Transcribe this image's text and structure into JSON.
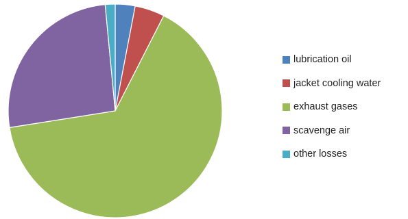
{
  "chart_data": {
    "type": "pie",
    "title": "",
    "start_angle_deg": 0,
    "direction": "clockwise",
    "legend_position": "right",
    "slices": [
      {
        "label": "lubrication oil",
        "value": 3.0,
        "color": "#4F81BD"
      },
      {
        "label": "jacket cooling water",
        "value": 4.5,
        "color": "#C0504D"
      },
      {
        "label": "exhaust gases",
        "value": 65.0,
        "color": "#9BBB59"
      },
      {
        "label": "scavenge air",
        "value": 26.0,
        "color": "#8064A2"
      },
      {
        "label": "other losses",
        "value": 1.5,
        "color": "#4BACC6"
      }
    ]
  }
}
